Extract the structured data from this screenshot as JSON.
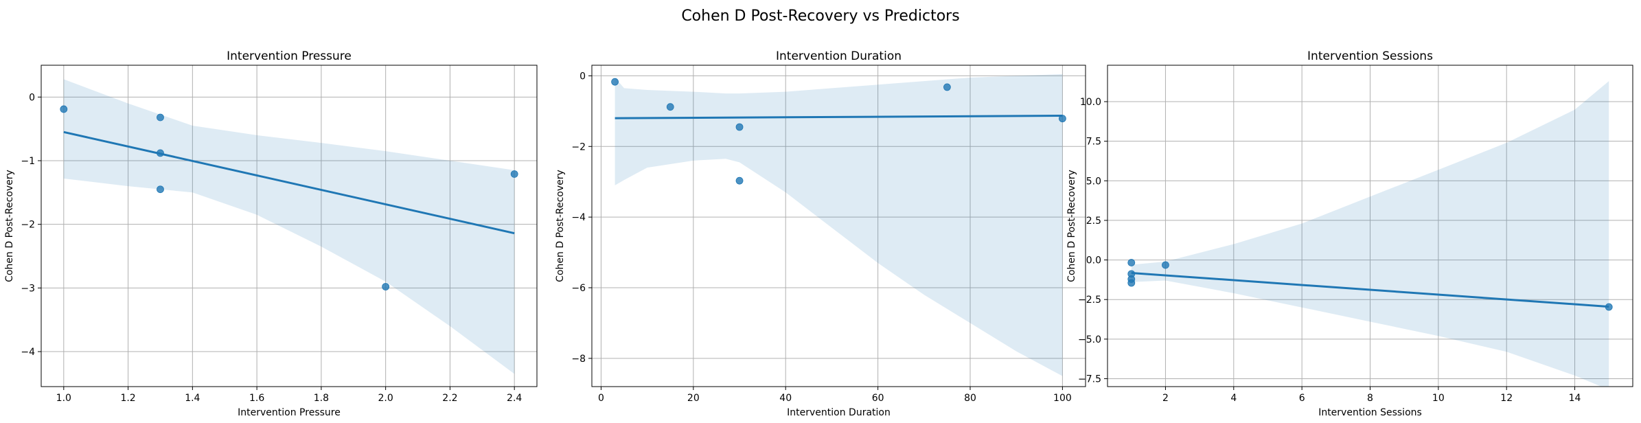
{
  "figure": {
    "suptitle": "Cohen D Post-Recovery vs Predictors"
  },
  "colors": {
    "line": "#1f77b4",
    "band": "#1f77b4",
    "grid": "#b0b0b0",
    "points": "#1f77b4"
  },
  "chart_data": [
    {
      "type": "scatter",
      "title": "Intervention Pressure",
      "xlabel": "Intervention Pressure",
      "ylabel": "Cohen D Post-Recovery",
      "xlim": [
        0.93,
        2.47
      ],
      "ylim": [
        -4.55,
        0.5
      ],
      "xticks": [
        1.0,
        1.2,
        1.4,
        1.6,
        1.8,
        2.0,
        2.2,
        2.4
      ],
      "xtick_labels": [
        "1.0",
        "1.2",
        "1.4",
        "1.6",
        "1.8",
        "2.0",
        "2.2",
        "2.4"
      ],
      "yticks": [
        0,
        -1,
        -2,
        -3,
        -4
      ],
      "ytick_labels": [
        "0",
        "−1",
        "−2",
        "−3",
        "−4"
      ],
      "grid": true,
      "points": [
        {
          "x": 1.0,
          "y": -0.19
        },
        {
          "x": 1.3,
          "y": -0.32
        },
        {
          "x": 1.3,
          "y": -0.88
        },
        {
          "x": 1.3,
          "y": -1.45
        },
        {
          "x": 2.0,
          "y": -2.98
        },
        {
          "x": 2.4,
          "y": -1.21
        }
      ],
      "regression": {
        "x": [
          1.0,
          2.4
        ],
        "y": [
          -0.55,
          -2.14
        ]
      },
      "ci_band": {
        "x": [
          1.0,
          1.2,
          1.4,
          1.6,
          1.8,
          2.0,
          2.2,
          2.4
        ],
        "upper": [
          0.28,
          -0.1,
          -0.45,
          -0.6,
          -0.72,
          -0.85,
          -1.0,
          -1.15
        ],
        "lower": [
          -1.28,
          -1.4,
          -1.5,
          -1.85,
          -2.35,
          -2.9,
          -3.6,
          -4.35
        ]
      }
    },
    {
      "type": "scatter",
      "title": "Intervention Duration",
      "xlabel": "Intervention Duration",
      "ylabel": "Cohen D Post-Recovery",
      "xlim": [
        -2,
        105
      ],
      "ylim": [
        -8.8,
        0.3
      ],
      "xticks": [
        0,
        20,
        40,
        60,
        80,
        100
      ],
      "xtick_labels": [
        "0",
        "20",
        "40",
        "60",
        "80",
        "100"
      ],
      "yticks": [
        0,
        -2,
        -4,
        -6,
        -8
      ],
      "ytick_labels": [
        "0",
        "−2",
        "−4",
        "−6",
        "−8"
      ],
      "grid": true,
      "points": [
        {
          "x": 3,
          "y": -0.17
        },
        {
          "x": 15,
          "y": -0.88
        },
        {
          "x": 30,
          "y": -1.45
        },
        {
          "x": 30,
          "y": -2.97
        },
        {
          "x": 75,
          "y": -0.32
        },
        {
          "x": 100,
          "y": -1.21
        }
      ],
      "regression": {
        "x": [
          3,
          100
        ],
        "y": [
          -1.2,
          -1.13
        ]
      },
      "ci_band": {
        "x": [
          3,
          5,
          10,
          20,
          27,
          30,
          40,
          50,
          60,
          70,
          80,
          90,
          100
        ],
        "upper": [
          -0.05,
          -0.35,
          -0.4,
          -0.45,
          -0.5,
          -0.5,
          -0.45,
          -0.35,
          -0.25,
          -0.15,
          -0.05,
          0.0,
          0.05
        ],
        "lower": [
          -3.1,
          -2.95,
          -2.6,
          -2.4,
          -2.35,
          -2.45,
          -3.3,
          -4.3,
          -5.3,
          -6.2,
          -7.0,
          -7.8,
          -8.5
        ]
      }
    },
    {
      "type": "scatter",
      "title": "Intervention Sessions",
      "xlabel": "Intervention Sessions",
      "ylabel": "Cohen D Post-Recovery",
      "xlim": [
        0.3,
        15.7
      ],
      "ylim": [
        -8.0,
        12.3
      ],
      "xticks": [
        2,
        4,
        6,
        8,
        10,
        12,
        14
      ],
      "xtick_labels": [
        "2",
        "4",
        "6",
        "8",
        "10",
        "12",
        "14"
      ],
      "yticks": [
        10,
        7.5,
        5,
        2.5,
        0,
        -2.5,
        -5,
        -7.5
      ],
      "ytick_labels": [
        "10.0",
        "7.5",
        "5.0",
        "2.5",
        "0.0",
        "−2.5",
        "−5.0",
        "−7.5"
      ],
      "grid": true,
      "points": [
        {
          "x": 1,
          "y": -0.17
        },
        {
          "x": 1,
          "y": -0.88
        },
        {
          "x": 1,
          "y": -1.21
        },
        {
          "x": 1,
          "y": -1.45
        },
        {
          "x": 2,
          "y": -0.32
        },
        {
          "x": 15,
          "y": -2.97
        }
      ],
      "regression": {
        "x": [
          1,
          15
        ],
        "y": [
          -0.82,
          -2.95
        ]
      },
      "ci_band": {
        "x": [
          1,
          2,
          4,
          6,
          8,
          10,
          12,
          14,
          15
        ],
        "upper": [
          -0.3,
          -0.1,
          1.0,
          2.3,
          4.0,
          5.7,
          7.4,
          9.5,
          11.3
        ],
        "lower": [
          -1.4,
          -1.3,
          -2.1,
          -3.0,
          -3.9,
          -4.8,
          -5.8,
          -7.3,
          -8.2
        ]
      }
    }
  ]
}
